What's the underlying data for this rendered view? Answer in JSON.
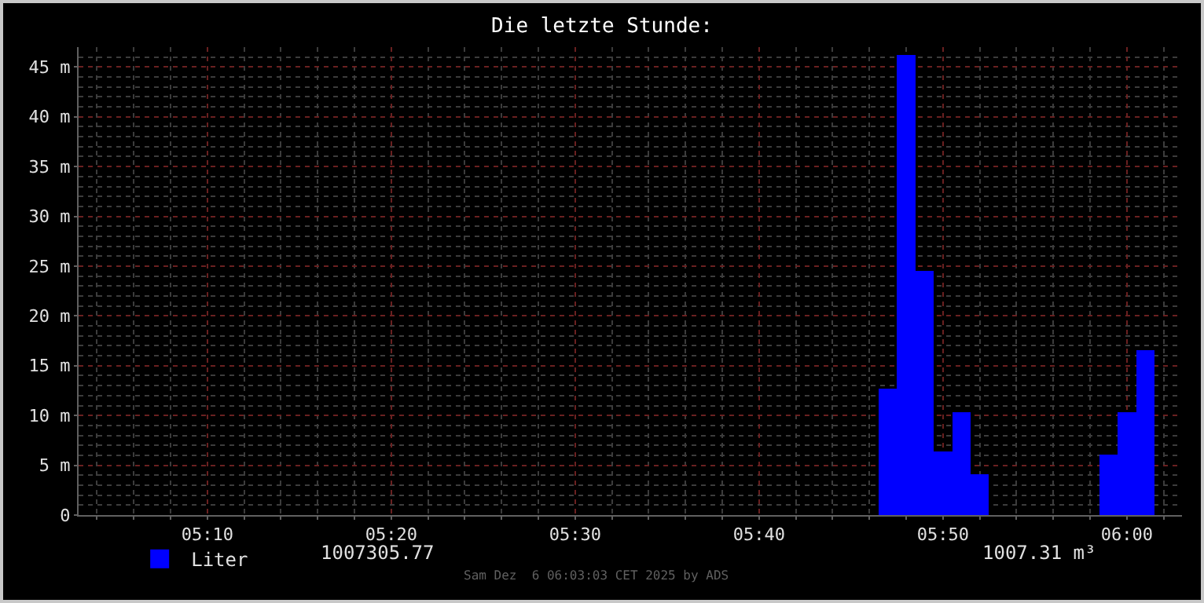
{
  "chart_data": {
    "type": "bar",
    "title": "Die letzte Stunde:",
    "x": [
      "2025-12-06T05:47",
      "2025-12-06T05:48",
      "2025-12-06T05:49",
      "2025-12-06T05:50",
      "2025-12-06T05:51",
      "2025-12-06T05:52",
      "2025-12-06T05:59",
      "2025-12-06T06:00",
      "2025-12-06T06:01"
    ],
    "series": [
      {
        "name": "Liter",
        "color": "#0000ff",
        "values": [
          12.7,
          46.2,
          24.5,
          6.4,
          10.3,
          4.1,
          6.1,
          10.3,
          16.6
        ]
      }
    ],
    "xlim": [
      "2025-12-06T05:03",
      "2025-12-06T06:03"
    ],
    "xticks": [
      {
        "value": "2025-12-06T05:10",
        "label": "05:10"
      },
      {
        "value": "2025-12-06T05:20",
        "label": "05:20"
      },
      {
        "value": "2025-12-06T05:30",
        "label": "05:30"
      },
      {
        "value": "2025-12-06T05:40",
        "label": "05:40"
      },
      {
        "value": "2025-12-06T05:50",
        "label": "05:50"
      },
      {
        "value": "2025-12-06T06:00",
        "label": "06:00"
      }
    ],
    "ylim": [
      0,
      47
    ],
    "yticks": [
      0,
      {
        "value": 5,
        "label": "5 m"
      },
      {
        "value": 10,
        "label": "10 m"
      },
      {
        "value": 15,
        "label": "15 m"
      },
      {
        "value": 20,
        "label": "20 m"
      },
      {
        "value": 25,
        "label": "25 m"
      },
      {
        "value": 30,
        "label": "30 m"
      },
      {
        "value": 35,
        "label": "35 m"
      },
      {
        "value": 40,
        "label": "40 m"
      },
      {
        "value": 45,
        "label": "45 m"
      }
    ],
    "grid": true,
    "legend": "bottom left",
    "annotations": [
      "1007305.77",
      "1007.31 m³",
      "Sam Dez  6 06:03:03 CET 2025 by ADS"
    ]
  }
}
